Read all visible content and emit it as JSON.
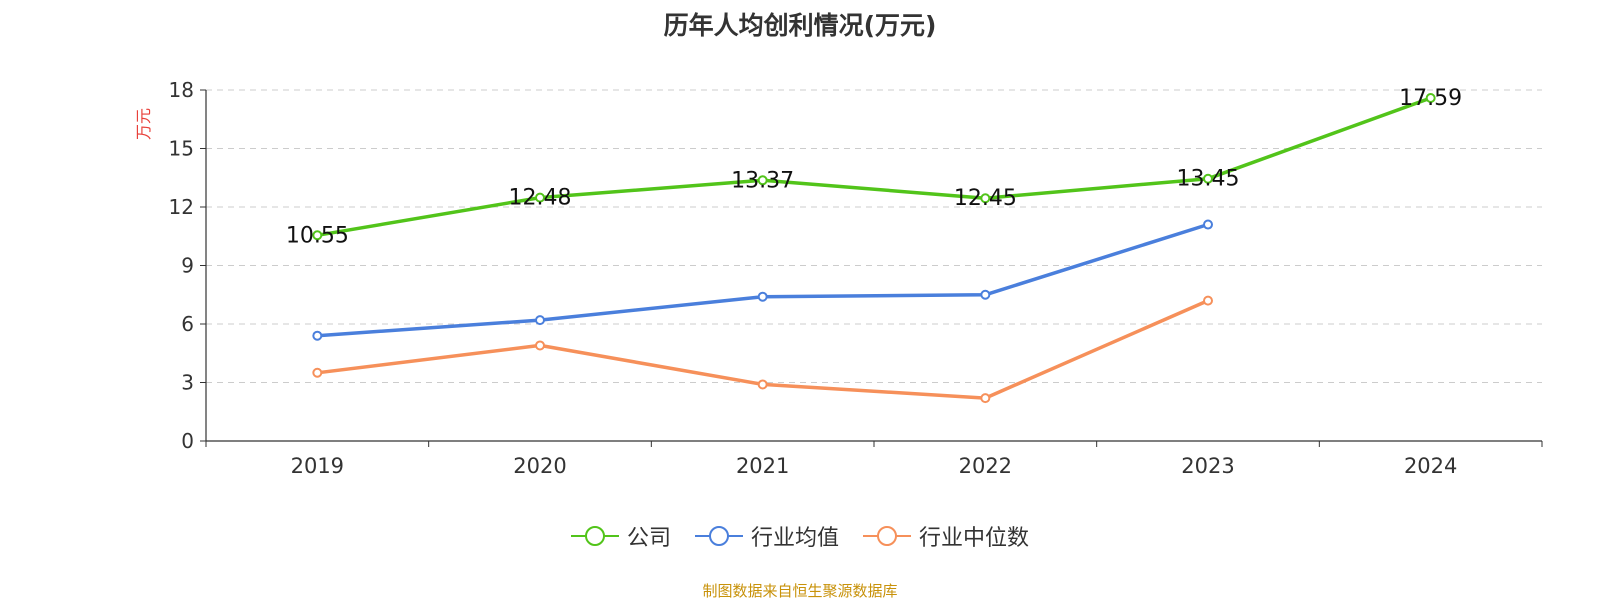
{
  "chart_data": {
    "type": "line",
    "title": "历年人均创利情况(万元)",
    "ylabel": "万元",
    "xlabel": "",
    "categories": [
      "2019",
      "2020",
      "2021",
      "2022",
      "2023",
      "2024"
    ],
    "ylim": [
      0,
      18
    ],
    "yticks": [
      0,
      3,
      6,
      9,
      12,
      15,
      18
    ],
    "grid": true,
    "legend_position": "bottom",
    "series": [
      {
        "name": "公司",
        "color": "#52c41a",
        "values": [
          10.55,
          12.48,
          13.37,
          12.45,
          13.45,
          17.59
        ],
        "show_labels": true
      },
      {
        "name": "行业均值",
        "color": "#4a7fdc",
        "values": [
          5.4,
          6.2,
          7.4,
          7.5,
          11.1,
          null
        ],
        "show_labels": false
      },
      {
        "name": "行业中位数",
        "color": "#f6905a",
        "values": [
          3.5,
          4.9,
          2.9,
          2.2,
          7.2,
          null
        ],
        "show_labels": false
      }
    ]
  },
  "source_note": "制图数据来自恒生聚源数据库",
  "y_axis_color": "#e8403a"
}
